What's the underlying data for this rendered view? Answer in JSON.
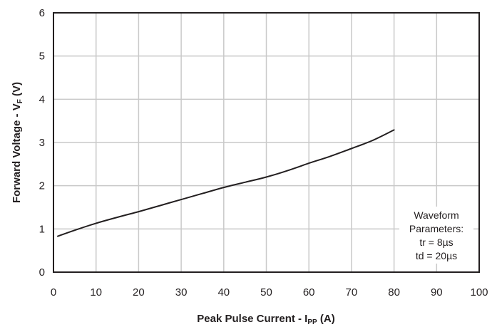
{
  "chart_data": {
    "type": "line",
    "title": "",
    "xlabel": {
      "main": "Peak Pulse Current - I",
      "sub": "PP",
      "unit": " (A)"
    },
    "ylabel": {
      "main": "Forward Voltage - V",
      "sub": "F",
      "unit": " (V)"
    },
    "xlim": [
      0,
      100
    ],
    "ylim": [
      0,
      6
    ],
    "xticks": [
      0,
      10,
      20,
      30,
      40,
      50,
      60,
      70,
      80,
      90,
      100
    ],
    "yticks": [
      0,
      1,
      2,
      3,
      4,
      5,
      6
    ],
    "grid": true,
    "series": [
      {
        "color": "#231f20",
        "x": [
          1,
          5,
          10,
          15,
          20,
          25,
          30,
          35,
          40,
          45,
          50,
          55,
          60,
          65,
          70,
          75,
          80
        ],
        "y": [
          0.83,
          0.97,
          1.13,
          1.27,
          1.4,
          1.54,
          1.68,
          1.82,
          1.96,
          2.08,
          2.2,
          2.35,
          2.52,
          2.68,
          2.86,
          3.05,
          3.29
        ]
      }
    ],
    "annotation": {
      "lines": [
        "Waveform",
        "Parameters:",
        "tr = 8µs",
        "td = 20µs"
      ]
    },
    "colors": {
      "grid": "#c9c9c9",
      "axis": "#231f20",
      "line": "#231f20"
    }
  }
}
